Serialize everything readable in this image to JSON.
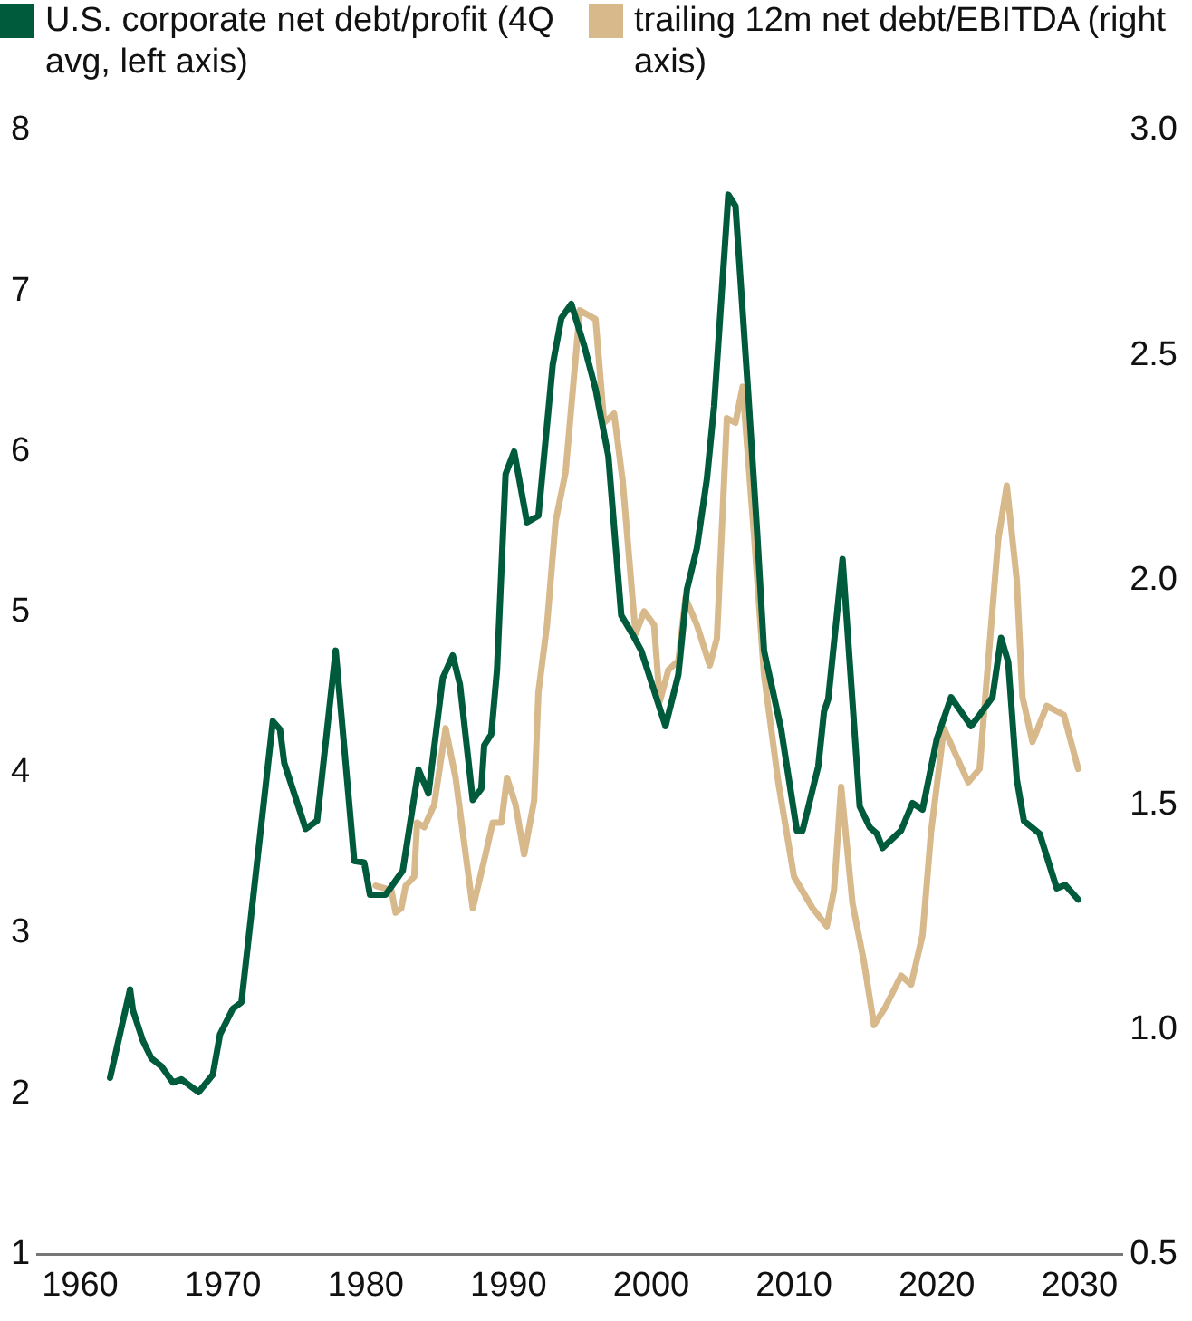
{
  "chart_data": {
    "type": "line",
    "legend": "top",
    "grid": false,
    "marker": "none",
    "line_style": "solid",
    "xlim": [
      1957,
      2033
    ],
    "xticks": [
      1960,
      1970,
      1980,
      1990,
      2000,
      2010,
      2020,
      2030
    ],
    "ylim": [
      1,
      8
    ],
    "yticks": [
      1,
      2,
      3,
      4,
      5,
      6,
      7,
      8
    ],
    "y2lim": [
      0.5,
      3.0
    ],
    "y2ticks": [
      {
        "value": 0.5,
        "label": "0.5"
      },
      {
        "value": 1.0,
        "label": "1.0"
      },
      {
        "value": 1.5,
        "label": "1.5"
      },
      {
        "value": 2.0,
        "label": "2.0"
      },
      {
        "value": 2.5,
        "label": "2.5"
      },
      {
        "value": 3.0,
        "label": "3.0"
      }
    ],
    "series": [
      {
        "name": "U.S. corporate net debt/profit (4Q avg, left axis)",
        "color": "#005a3c",
        "x": [
          1962.1,
          1963.5,
          1963.7,
          1964.4,
          1965,
          1965.7,
          1966.5,
          1967.1,
          1968.3,
          1969.3,
          1969.8,
          1970.7,
          1971.3,
          1973.5,
          1974,
          1974.3,
          1975.8,
          1976.6,
          1977.9,
          1979.2,
          1979.9,
          1980.3,
          1981.4,
          1982.6,
          1983.7,
          1984.4,
          1985.4,
          1986.1,
          1986.6,
          1987.5,
          1988.1,
          1988.3,
          1988.8,
          1989.2,
          1989.8,
          1990.4,
          1991.3,
          1992.1,
          1993.1,
          1993.7,
          1994.4,
          1995.3,
          1996.1,
          1997,
          1997.9,
          1998.7,
          1999.3,
          2001,
          2001.9,
          2002.5,
          2003.2,
          2003.9,
          2004.4,
          2005.4,
          2005.9,
          2006.8,
          2007.4,
          2007.9,
          2009.1,
          2010.2,
          2010.6,
          2011.7,
          2012.1,
          2012.4,
          2013.4,
          2014.6,
          2015.3,
          2015.8,
          2016.2,
          2017.5,
          2018.3,
          2019,
          2020,
          2021,
          2022.4,
          2023,
          2023.9,
          2024.5,
          2025,
          2025.6,
          2026.1,
          2027.2,
          2028.4,
          2029,
          2029.9
        ],
        "values": [
          2.1,
          2.65,
          2.52,
          2.33,
          2.22,
          2.17,
          2.07,
          2.09,
          2.01,
          2.12,
          2.37,
          2.53,
          2.57,
          4.32,
          4.27,
          4.06,
          3.65,
          3.7,
          4.76,
          3.45,
          3.44,
          3.24,
          3.24,
          3.39,
          4.02,
          3.87,
          4.59,
          4.73,
          4.55,
          3.83,
          3.9,
          4.17,
          4.24,
          4.64,
          5.86,
          6.0,
          5.56,
          5.6,
          6.54,
          6.83,
          6.92,
          6.66,
          6.39,
          5.97,
          4.98,
          4.86,
          4.76,
          4.29,
          4.61,
          5.14,
          5.4,
          5.83,
          6.28,
          7.6,
          7.53,
          6.35,
          5.52,
          4.76,
          4.27,
          3.64,
          3.64,
          4.04,
          4.38,
          4.46,
          5.33,
          3.79,
          3.66,
          3.62,
          3.53,
          3.64,
          3.81,
          3.77,
          4.21,
          4.47,
          4.29,
          4.36,
          4.47,
          4.84,
          4.69,
          3.96,
          3.7,
          3.62,
          3.28,
          3.3,
          3.21
        ]
      },
      {
        "name": "trailing 12m net debt/EBITDA (right axis)",
        "color": "#d8b98c",
        "axis": "y2",
        "x": [
          1980.7,
          1981.8,
          1982.1,
          1982.5,
          1982.8,
          1983.4,
          1983.6,
          1984.1,
          1984.8,
          1985.6,
          1986.3,
          1987.5,
          1988.4,
          1988.9,
          1989.5,
          1989.9,
          1990.5,
          1991.1,
          1991.8,
          1992.1,
          1992.7,
          1993.3,
          1994,
          1995,
          1996.1,
          1996.7,
          1997.4,
          1998,
          1998.9,
          1999.5,
          2000.2,
          2000.6,
          2001.2,
          2001.9,
          2002.4,
          2003.2,
          2004.1,
          2004.6,
          2005.3,
          2005.9,
          2006.4,
          2007.2,
          2007.9,
          2008.9,
          2010,
          2011.3,
          2012.3,
          2012.8,
          2013.3,
          2014.1,
          2014.9,
          2015.6,
          2016.4,
          2017.5,
          2018.2,
          2019,
          2019.6,
          2020.5,
          2022.2,
          2023,
          2023.5,
          2024.3,
          2024.9,
          2025.6,
          2026,
          2026.7,
          2027.7,
          2028.9,
          2029.9
        ],
        "values": [
          1.32,
          1.31,
          1.26,
          1.27,
          1.32,
          1.34,
          1.46,
          1.45,
          1.5,
          1.67,
          1.56,
          1.27,
          1.39,
          1.46,
          1.46,
          1.56,
          1.5,
          1.39,
          1.51,
          1.75,
          1.9,
          2.13,
          2.24,
          2.6,
          2.58,
          2.35,
          2.37,
          2.22,
          1.88,
          1.93,
          1.9,
          1.73,
          1.8,
          1.82,
          1.96,
          1.9,
          1.81,
          1.87,
          2.36,
          2.35,
          2.43,
          2.1,
          1.79,
          1.55,
          1.34,
          1.27,
          1.23,
          1.31,
          1.54,
          1.28,
          1.15,
          1.01,
          1.05,
          1.12,
          1.1,
          1.21,
          1.44,
          1.67,
          1.55,
          1.58,
          1.78,
          2.09,
          2.21,
          2.0,
          1.74,
          1.64,
          1.72,
          1.7,
          1.58
        ]
      }
    ]
  }
}
